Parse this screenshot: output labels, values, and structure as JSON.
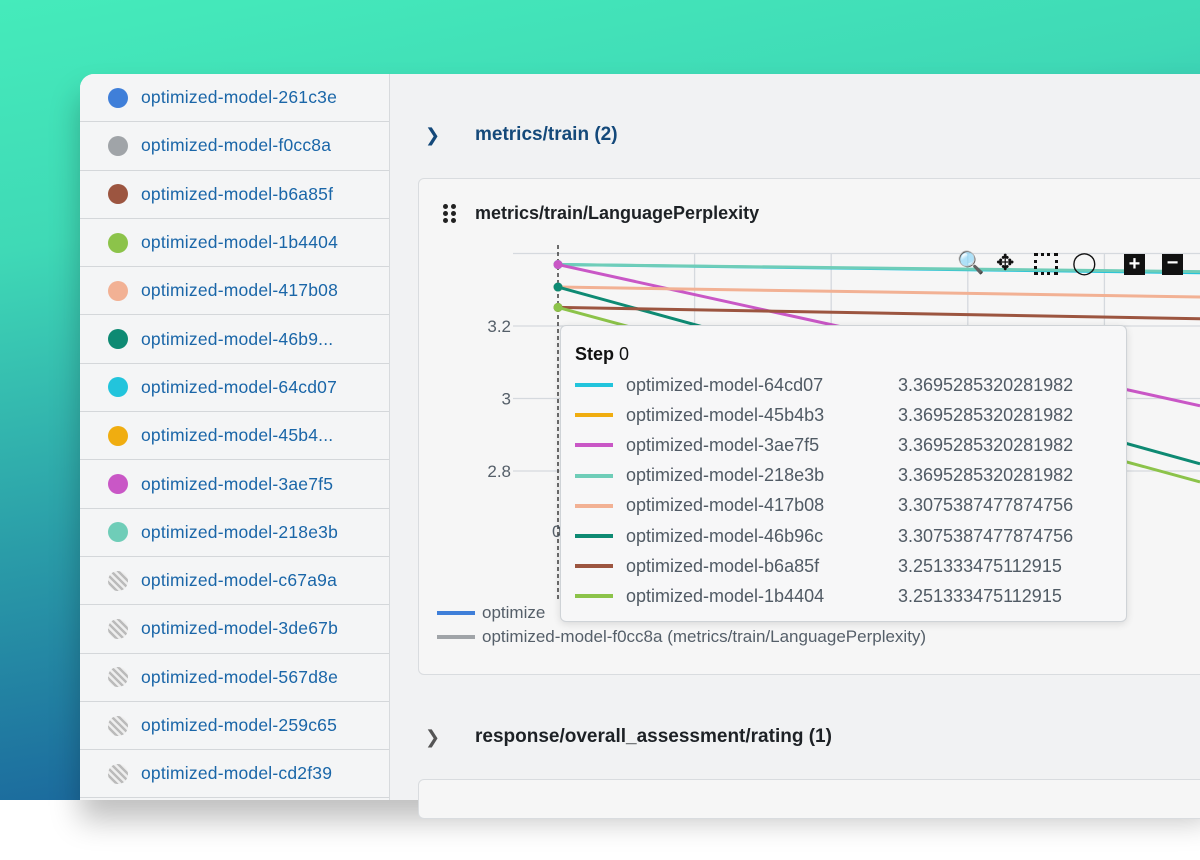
{
  "sidebar": {
    "items": [
      {
        "label": "optimized-model-261c3e",
        "color": "#3f7fd9"
      },
      {
        "label": "optimized-model-f0cc8a",
        "color": "#a0a4a8"
      },
      {
        "label": "optimized-model-b6a85f",
        "color": "#9c5540"
      },
      {
        "label": "optimized-model-1b4404",
        "color": "#8cc34a"
      },
      {
        "label": "optimized-model-417b08",
        "color": "#f2b194"
      },
      {
        "label": "optimized-model-46b9...",
        "color": "#0e8a73"
      },
      {
        "label": "optimized-model-64cd07",
        "color": "#22c4dc"
      },
      {
        "label": "optimized-model-45b4...",
        "color": "#f0ad10"
      },
      {
        "label": "optimized-model-3ae7f5",
        "color": "#c957c6"
      },
      {
        "label": "optimized-model-218e3b",
        "color": "#6fcdb8"
      },
      {
        "label": "optimized-model-c67a9a",
        "color": "hatched"
      },
      {
        "label": "optimized-model-3de67b",
        "color": "hatched"
      },
      {
        "label": "optimized-model-567d8e",
        "color": "hatched"
      },
      {
        "label": "optimized-model-259c65",
        "color": "hatched"
      },
      {
        "label": "optimized-model-cd2f39",
        "color": "hatched"
      }
    ]
  },
  "sections": [
    {
      "title": "metrics/train (2)",
      "expanded": true,
      "color": "#14497a"
    },
    {
      "title": "response/overall_assessment/rating (1)",
      "expanded": false,
      "color": "#1d2125"
    }
  ],
  "panel": {
    "title": "metrics/train/LanguagePerplexity",
    "toolbar": [
      "zoom-icon",
      "pan-icon",
      "box-select-icon",
      "lasso-icon",
      "zoom-in-icon",
      "zoom-out-icon"
    ]
  },
  "chart_data": {
    "type": "line",
    "title": "metrics/train/LanguagePerplexity",
    "xlabel": "",
    "ylabel": "",
    "y_ticks": [
      "3.2",
      "3",
      "2.8"
    ],
    "x_ticks": [
      "0"
    ],
    "ylim": [
      2.62,
      3.4
    ],
    "grid": true,
    "series": [
      {
        "name": "optimized-model-64cd07",
        "color": "#22c4dc",
        "x": [
          0,
          4.7
        ],
        "y": [
          3.3695,
          3.347
        ]
      },
      {
        "name": "optimized-model-218e3b",
        "color": "#6fcdb8",
        "x": [
          0,
          4.7
        ],
        "y": [
          3.3695,
          3.35
        ]
      },
      {
        "name": "optimized-model-3ae7f5",
        "color": "#c957c6",
        "x": [
          0,
          4.7
        ],
        "y": [
          3.3695,
          2.98
        ]
      },
      {
        "name": "optimized-model-417b08",
        "color": "#f2b194",
        "x": [
          0,
          4.7
        ],
        "y": [
          3.3075,
          3.28
        ]
      },
      {
        "name": "optimized-model-46b96c",
        "color": "#0e8a73",
        "x": [
          0,
          4.7
        ],
        "y": [
          3.3075,
          2.82
        ]
      },
      {
        "name": "optimized-model-b6a85f",
        "color": "#9c5540",
        "x": [
          0,
          4.7
        ],
        "y": [
          3.2513,
          3.22
        ]
      },
      {
        "name": "optimized-model-1b4404",
        "color": "#8cc34a",
        "x": [
          0,
          4.7
        ],
        "y": [
          3.2513,
          2.77
        ]
      }
    ]
  },
  "tooltip": {
    "step_label": "Step",
    "step_value": "0",
    "rows": [
      {
        "name": "optimized-model-64cd07",
        "value": "3.3695285320281982",
        "color": "#22c4dc"
      },
      {
        "name": "optimized-model-45b4b3",
        "value": "3.3695285320281982",
        "color": "#f0ad10"
      },
      {
        "name": "optimized-model-3ae7f5",
        "value": "3.3695285320281982",
        "color": "#c957c6"
      },
      {
        "name": "optimized-model-218e3b",
        "value": "3.3695285320281982",
        "color": "#6fcdb8"
      },
      {
        "name": "optimized-model-417b08",
        "value": "3.3075387477874756",
        "color": "#f2b194"
      },
      {
        "name": "optimized-model-46b96c",
        "value": "3.3075387477874756",
        "color": "#0e8a73"
      },
      {
        "name": "optimized-model-b6a85f",
        "value": "3.251333475112915",
        "color": "#9c5540"
      },
      {
        "name": "optimized-model-1b4404",
        "value": "3.251333475112915",
        "color": "#8cc34a"
      }
    ]
  },
  "legend": [
    {
      "label": "optimize",
      "color": "#3f7fd9"
    },
    {
      "label": "optimized-model-f0cc8a (metrics/train/LanguagePerplexity)",
      "color": "#a0a4a8"
    }
  ]
}
